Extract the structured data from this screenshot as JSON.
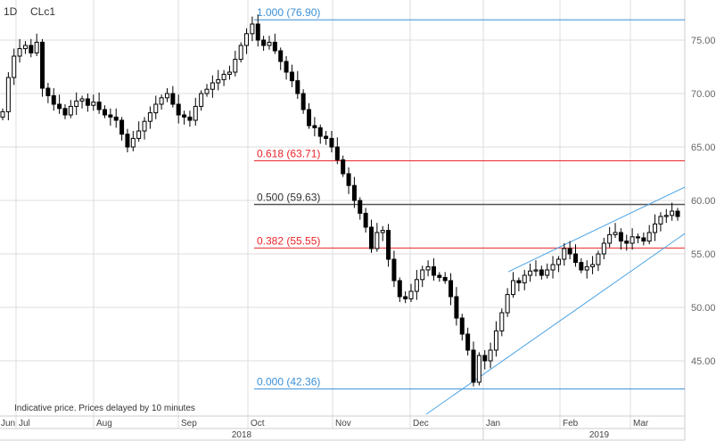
{
  "header": {
    "interval": "1D",
    "symbol": "CLc1"
  },
  "note": "Indicative price. Prices delayed by 10 minutes",
  "chart_data": {
    "type": "candlestick",
    "symbol": "CLc1",
    "ylim": [
      42.0,
      78.8
    ],
    "y_ticks": [
      "45.00",
      "50.00",
      "55.00",
      "60.00",
      "65.00",
      "70.00",
      "75.00"
    ],
    "y_tick_values": [
      45,
      50,
      55,
      60,
      65,
      70,
      75
    ],
    "x_month_labels": [
      "Jun",
      "Jul",
      "Aug",
      "Sep",
      "Oct",
      "Nov",
      "Dec",
      "Jan",
      "Feb",
      "Mar"
    ],
    "x_year_labels": [
      "2018",
      "2019"
    ],
    "grid": true,
    "colors": {
      "up": "#ffffff",
      "down": "#000000",
      "fib_red": "#e8262b",
      "fib_blue": "#3a8fd6",
      "fib_gray": "#555555",
      "trend": "#4aa3e6",
      "grid": "#dddddd"
    },
    "closes": [
      68.3,
      71.5,
      73.5,
      74.2,
      74.5,
      73.8,
      74.8,
      70.5,
      69.8,
      69.0,
      68.6,
      68.0,
      68.8,
      69.3,
      69.5,
      68.9,
      69.2,
      68.5,
      68.0,
      67.8,
      67.5,
      66.2,
      65.0,
      65.8,
      66.5,
      67.4,
      68.2,
      69.0,
      69.6,
      70.0,
      69.0,
      68.0,
      67.8,
      67.5,
      68.8,
      70.0,
      70.4,
      71.0,
      71.3,
      71.8,
      72.0,
      73.2,
      74.5,
      75.6,
      76.5,
      75.0,
      74.5,
      74.8,
      74.0,
      73.0,
      72.0,
      71.2,
      70.0,
      68.5,
      67.0,
      66.8,
      66.0,
      65.8,
      65.0,
      63.8,
      62.5,
      61.4,
      60.0,
      58.8,
      57.5,
      55.5,
      57.0,
      57.2,
      54.5,
      52.5,
      51.0,
      50.8,
      51.5,
      52.6,
      53.5,
      53.8,
      53.0,
      52.8,
      52.5,
      51.0,
      49.0,
      47.5,
      46.0,
      43.0,
      45.5,
      45.0,
      46.0,
      47.8,
      49.5,
      51.2,
      52.5,
      52.3,
      53.0,
      53.4,
      53.5,
      53.0,
      53.5,
      54.0,
      54.5,
      55.5,
      55.0,
      54.2,
      53.5,
      53.8,
      54.0,
      55.0,
      56.0,
      56.8,
      57.0,
      56.2,
      56.0,
      56.6,
      56.5,
      56.2,
      57.0,
      57.8,
      58.5,
      58.6,
      59.0,
      58.5
    ],
    "first_open": 67.8,
    "fibonacci": [
      {
        "label": "1.000 (76.90)",
        "value": 76.9,
        "color": "#3a8fd6",
        "line": "#3a8fd6"
      },
      {
        "label": "0.618 (63.71)",
        "value": 63.71,
        "color": "#e8262b",
        "line": "#e8262b"
      },
      {
        "label": "0.500 (59.63)",
        "value": 59.63,
        "color": "#333333",
        "line": "#555555"
      },
      {
        "label": "0.382 (55.55)",
        "value": 55.55,
        "color": "#e8262b",
        "line": "#e8262b"
      },
      {
        "label": "0.000 (42.36)",
        "value": 42.36,
        "color": "#3a8fd6",
        "line": "#3a8fd6"
      }
    ],
    "trendlines": [
      {
        "name": "upper-channel",
        "from_price": 53.33,
        "to_price": 61.25
      },
      {
        "name": "lower-channel",
        "from_price": 40.0,
        "to_price": 56.9
      }
    ]
  }
}
